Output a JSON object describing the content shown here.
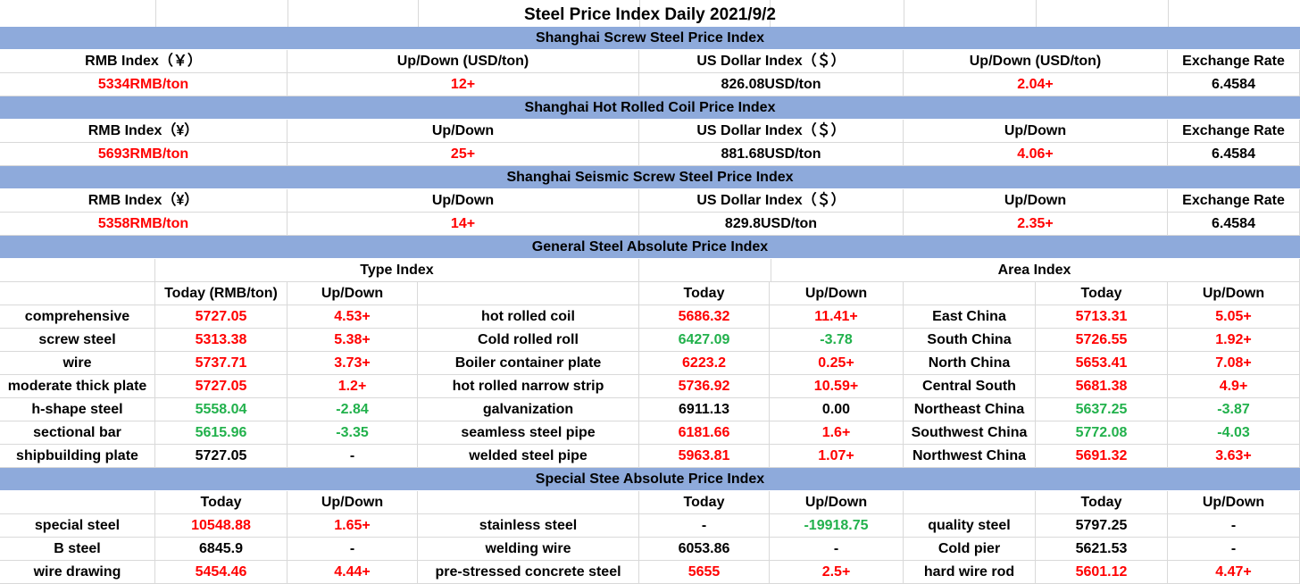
{
  "title": "Steel Price Index Daily  2021/9/2",
  "top_sections": [
    {
      "name": "Shanghai Screw Steel Price Index",
      "headers": [
        "RMB Index（￥）",
        "Up/Down (USD/ton)",
        "US Dollar Index（＄）",
        "Up/Down (USD/ton)",
        "Exchange Rate"
      ],
      "values": [
        "5334RMB/ton",
        "12+",
        "826.08USD/ton",
        "2.04+",
        "6.4584"
      ]
    },
    {
      "name": "Shanghai Hot Rolled Coil Price Index",
      "headers": [
        "RMB Index（¥）",
        "Up/Down",
        "US Dollar Index（＄）",
        "Up/Down",
        "Exchange Rate"
      ],
      "values": [
        "5693RMB/ton",
        "25+",
        "881.68USD/ton",
        "4.06+",
        "6.4584"
      ]
    },
    {
      "name": "Shanghai Seismic Screw Steel Price Index",
      "headers": [
        "RMB Index（¥）",
        "Up/Down",
        "US Dollar Index（＄）",
        "Up/Down",
        "Exchange Rate"
      ],
      "values": [
        "5358RMB/ton",
        "14+",
        "829.8USD/ton",
        "2.35+",
        "6.4584"
      ]
    }
  ],
  "general": {
    "name": "General Steel Absolute Price Index",
    "type_index_label": "Type Index",
    "area_index_label": "Area Index",
    "headers": [
      "",
      "Today (RMB/ton)",
      "Up/Down",
      "",
      "Today",
      "Up/Down",
      "",
      "Today",
      "Up/Down"
    ],
    "rows": [
      [
        "comprehensive",
        "5727.05",
        "4.53+",
        "hot rolled coil",
        "5686.32",
        "11.41+",
        "East China",
        "5713.31",
        "5.05+"
      ],
      [
        "screw steel",
        "5313.38",
        "5.38+",
        "Cold rolled roll",
        "6427.09",
        "-3.78",
        "South China",
        "5726.55",
        "1.92+"
      ],
      [
        "wire",
        "5737.71",
        "3.73+",
        "Boiler container plate",
        "6223.2",
        "0.25+",
        "North China",
        "5653.41",
        "7.08+"
      ],
      [
        "moderate thick plate",
        "5727.05",
        "1.2+",
        "hot rolled narrow strip",
        "5736.92",
        "10.59+",
        "Central South",
        "5681.38",
        "4.9+"
      ],
      [
        "h-shape steel",
        "5558.04",
        "-2.84",
        "galvanization",
        "6911.13",
        "0.00",
        "Northeast China",
        "5637.25",
        "-3.87"
      ],
      [
        "sectional bar",
        "5615.96",
        "-3.35",
        "seamless steel pipe",
        "6181.66",
        "1.6+",
        "Southwest China",
        "5772.08",
        "-4.03"
      ],
      [
        "shipbuilding plate",
        "5727.05",
        "-",
        "welded steel pipe",
        "5963.81",
        "1.07+",
        "Northwest China",
        "5691.32",
        "3.63+"
      ]
    ],
    "colors": [
      [
        "k",
        "r",
        "r",
        "k",
        "r",
        "r",
        "k",
        "r",
        "r"
      ],
      [
        "k",
        "r",
        "r",
        "k",
        "g",
        "g",
        "k",
        "r",
        "r"
      ],
      [
        "k",
        "r",
        "r",
        "k",
        "r",
        "r",
        "k",
        "r",
        "r"
      ],
      [
        "k",
        "r",
        "r",
        "k",
        "r",
        "r",
        "k",
        "r",
        "r"
      ],
      [
        "k",
        "g",
        "g",
        "k",
        "k",
        "k",
        "k",
        "g",
        "g"
      ],
      [
        "k",
        "g",
        "g",
        "k",
        "r",
        "r",
        "k",
        "g",
        "g"
      ],
      [
        "k",
        "k",
        "k",
        "k",
        "r",
        "r",
        "k",
        "r",
        "r"
      ]
    ]
  },
  "special": {
    "name": "Special Stee Absolute Price Index",
    "headers": [
      "",
      "Today",
      "Up/Down",
      "",
      "Today",
      "Up/Down",
      "",
      "Today",
      "Up/Down"
    ],
    "rows": [
      [
        "special steel",
        "10548.88",
        "1.65+",
        "stainless steel",
        "-",
        "-19918.75",
        "quality steel",
        "5797.25",
        "-"
      ],
      [
        "B steel",
        "6845.9",
        "-",
        "welding wire",
        "6053.86",
        "-",
        "Cold pier",
        "5621.53",
        "-"
      ],
      [
        "wire drawing",
        "5454.46",
        "4.44+",
        "pre-stressed concrete steel",
        "5655",
        "2.5+",
        "hard wire rod",
        "5601.12",
        "4.47+"
      ]
    ],
    "colors": [
      [
        "k",
        "r",
        "r",
        "k",
        "k",
        "g",
        "k",
        "k",
        "k"
      ],
      [
        "k",
        "k",
        "k",
        "k",
        "k",
        "k",
        "k",
        "k",
        "k"
      ],
      [
        "k",
        "r",
        "r",
        "k",
        "r",
        "r",
        "k",
        "r",
        "r"
      ]
    ]
  },
  "colors": {
    "band": "#8eaadb",
    "up": "#ff0000",
    "down": "#22b14c",
    "grid": "#d9d9d9"
  }
}
